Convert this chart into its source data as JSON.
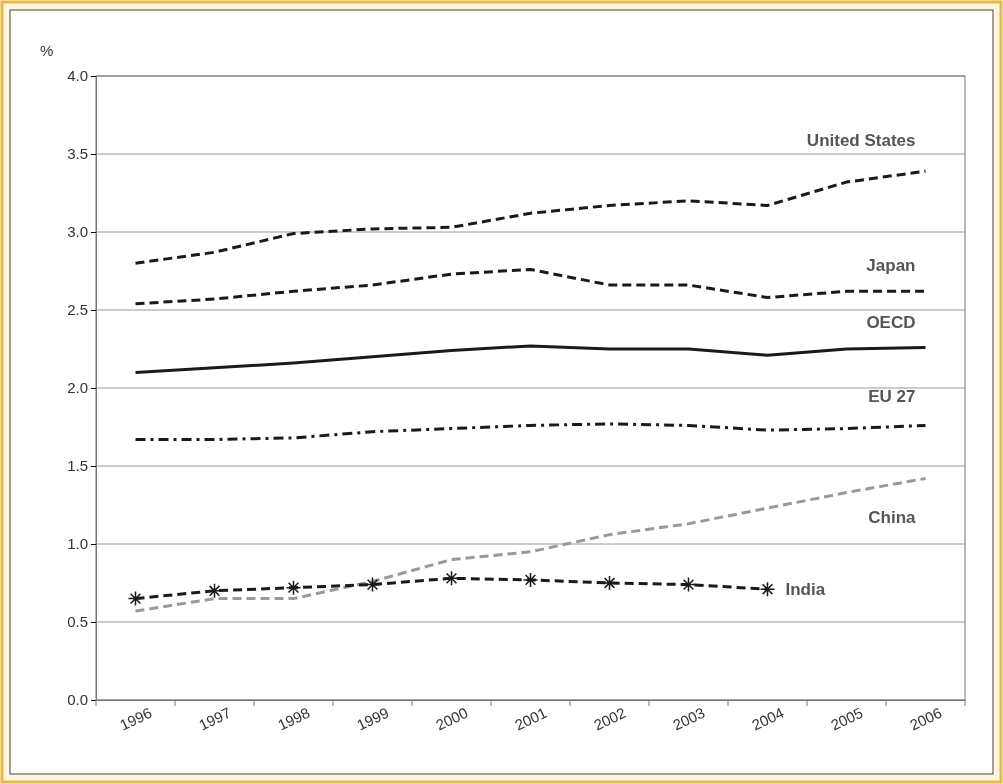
{
  "chart_data": {
    "type": "line",
    "ylabel": "%",
    "categories": [
      "1996",
      "1997",
      "1998",
      "1999",
      "2000",
      "2001",
      "2002",
      "2003",
      "2004",
      "2005",
      "2006"
    ],
    "series": [
      {
        "name": "United States",
        "color": "#1a1a1a",
        "line_style": "dashed",
        "values": [
          2.8,
          2.87,
          2.99,
          3.02,
          3.03,
          3.12,
          3.17,
          3.2,
          3.17,
          3.32,
          3.39
        ]
      },
      {
        "name": "Japan",
        "color": "#1a1a1a",
        "line_style": "dashed",
        "values": [
          2.54,
          2.57,
          2.62,
          2.66,
          2.73,
          2.76,
          2.66,
          2.66,
          2.58,
          2.62,
          2.62
        ]
      },
      {
        "name": "OECD",
        "color": "#1a1a1a",
        "line_style": "solid",
        "values": [
          2.1,
          2.13,
          2.16,
          2.2,
          2.24,
          2.27,
          2.25,
          2.25,
          2.21,
          2.25,
          2.26
        ]
      },
      {
        "name": "EU 27",
        "color": "#1a1a1a",
        "line_style": "dashdot",
        "values": [
          1.67,
          1.67,
          1.68,
          1.72,
          1.74,
          1.76,
          1.77,
          1.76,
          1.73,
          1.74,
          1.76
        ]
      },
      {
        "name": "China",
        "color": "#999999",
        "line_style": "dashed",
        "values": [
          0.57,
          0.65,
          0.65,
          0.76,
          0.9,
          0.95,
          1.06,
          1.13,
          1.23,
          1.33,
          1.42
        ]
      },
      {
        "name": "India",
        "color": "#1a1a1a",
        "line_style": "dashed",
        "marker": "cross",
        "values": [
          0.65,
          0.7,
          0.72,
          0.74,
          0.78,
          0.77,
          0.75,
          0.74,
          0.71,
          null,
          null
        ]
      }
    ],
    "ylim": [
      0,
      4
    ],
    "yticks": [
      {
        "value": 0,
        "label": "0.0"
      },
      {
        "value": 0.5,
        "label": "0.5"
      },
      {
        "value": 1,
        "label": "1.0"
      },
      {
        "value": 1.5,
        "label": "1.5"
      },
      {
        "value": 2,
        "label": "2.0"
      },
      {
        "value": 2.5,
        "label": "2.5"
      },
      {
        "value": 3,
        "label": "3.0"
      },
      {
        "value": 3.5,
        "label": "3.5"
      },
      {
        "value": 4,
        "label": "4.0"
      }
    ],
    "grid": "y",
    "legend": false
  }
}
